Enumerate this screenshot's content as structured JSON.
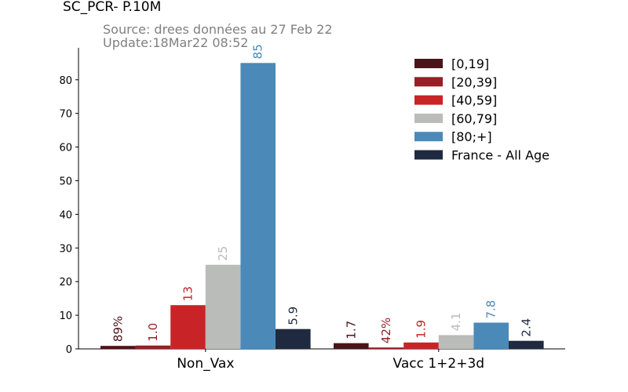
{
  "header": {
    "title": "SC_PCR- P.10M",
    "source": "Source: drees données au 27 Feb 22",
    "update": "Update:18Mar22 08:52"
  },
  "chart_data": {
    "type": "bar",
    "title": "SC_PCR- P.10M",
    "xlabel": "",
    "ylabel": "",
    "ylim": [
      0,
      89.5
    ],
    "yticks": [
      0,
      10,
      20,
      30,
      40,
      50,
      60,
      70,
      80
    ],
    "grid": false,
    "legend_position": "top-right",
    "categories": [
      "Non_Vax",
      "Vacc 1+2+3d"
    ],
    "series": [
      {
        "name": "[0,19]",
        "color": "#4a1519",
        "values": [
          0.89,
          1.7
        ],
        "labels": [
          "89%",
          "1.7"
        ]
      },
      {
        "name": "[20,39]",
        "color": "#962025",
        "values": [
          1.0,
          0.42
        ],
        "labels": [
          "1.0",
          "42%"
        ]
      },
      {
        "name": "[40,59]",
        "color": "#c82427",
        "values": [
          13,
          1.9
        ],
        "labels": [
          "13",
          "1.9"
        ]
      },
      {
        "name": "[60,79]",
        "color": "#b9bcb8",
        "values": [
          25,
          4.1
        ],
        "labels": [
          "25",
          "4.1"
        ]
      },
      {
        "name": "[80;+]",
        "color": "#4b8ab8",
        "values": [
          85,
          7.8
        ],
        "labels": [
          "85",
          "7.8"
        ]
      },
      {
        "name": "France - All Age",
        "color": "#1f2a40",
        "values": [
          5.9,
          2.4
        ],
        "labels": [
          "5.9",
          "2.4"
        ]
      }
    ]
  }
}
